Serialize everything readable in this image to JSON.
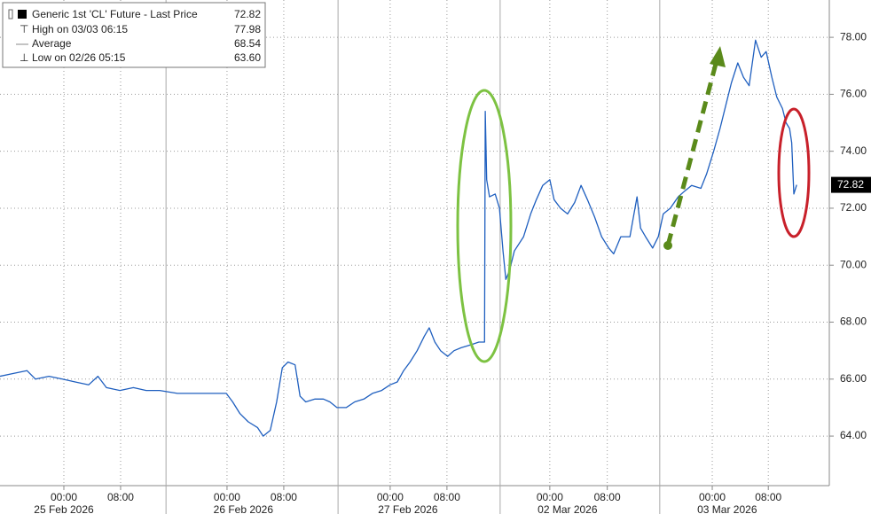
{
  "chart_data": {
    "type": "line",
    "series": [
      {
        "name": "Generic 1st 'CL' Future - Last Price",
        "color": "#1f5fbf",
        "x": [
          0,
          1.9,
          3.8,
          5,
          6.9,
          8.8,
          10.6,
          12.5,
          13.8,
          15,
          16.9,
          18.8,
          20.6,
          22.5,
          25,
          27.5,
          30,
          31.9,
          32.8,
          33.8,
          35,
          36.3,
          37.1,
          38.1,
          39,
          39.8,
          40.6,
          41.6,
          42.3,
          43.1,
          44.4,
          45.6,
          46.5,
          47.5,
          48.8,
          50,
          51.3,
          52.5,
          53.8,
          55,
          56,
          56.9,
          57.8,
          58.8,
          59.8,
          60.5,
          61.3,
          62.1,
          63.1,
          64,
          65,
          66.3,
          67.5,
          68.3,
          68.4,
          68.6,
          69,
          69.8,
          70.4,
          70.9,
          71.3,
          71.8,
          72.5,
          73.8,
          74.8,
          75.6,
          76.5,
          77.5,
          78.1,
          79,
          80,
          81,
          81.9,
          82.8,
          83.8,
          84.8,
          85.8,
          86.5,
          87.5,
          88.8,
          89.8,
          90.3,
          91,
          92,
          92.8,
          93.5,
          94.5,
          95.6,
          96.5,
          97.5,
          98.8,
          99.6,
          100.6,
          101.5,
          102.3,
          103.1,
          104,
          104.8,
          105.6,
          106.5,
          107.3,
          108,
          108.8,
          109.5,
          110.3,
          110.8,
          111.3,
          111.6,
          111.9,
          112.3
        ],
        "values": [
          66.1,
          66.2,
          66.3,
          66.0,
          66.1,
          66.0,
          65.9,
          65.8,
          66.1,
          65.7,
          65.6,
          65.7,
          65.6,
          65.6,
          65.5,
          65.5,
          65.5,
          65.5,
          65.2,
          64.8,
          64.5,
          64.3,
          64.0,
          64.2,
          65.2,
          66.4,
          66.6,
          66.5,
          65.4,
          65.2,
          65.3,
          65.3,
          65.2,
          65.0,
          65.0,
          65.2,
          65.3,
          65.5,
          65.6,
          65.8,
          65.9,
          66.3,
          66.6,
          67.0,
          67.5,
          67.8,
          67.3,
          67.0,
          66.8,
          67.0,
          67.1,
          67.2,
          67.3,
          67.3,
          75.4,
          73.0,
          72.4,
          72.5,
          72.0,
          70.5,
          69.5,
          69.8,
          70.5,
          71.0,
          71.8,
          72.3,
          72.8,
          73.0,
          72.3,
          72.0,
          71.8,
          72.2,
          72.8,
          72.3,
          71.7,
          71.0,
          70.6,
          70.4,
          71.0,
          71.0,
          72.4,
          71.3,
          71.0,
          70.6,
          71.0,
          71.8,
          72.0,
          72.4,
          72.6,
          72.8,
          72.7,
          73.2,
          74.0,
          74.8,
          75.6,
          76.4,
          77.1,
          76.6,
          76.3,
          77.9,
          77.3,
          77.5,
          76.6,
          75.9,
          75.5,
          75.0,
          74.8,
          74.3,
          72.5,
          72.82
        ]
      }
    ],
    "last_value": 72.82,
    "stats": [
      {
        "label": "High on 03/03 06:15",
        "value": 77.98
      },
      {
        "label": "Average",
        "value": 68.54
      },
      {
        "label": "Low on 02/26 05:15",
        "value": 63.6,
        "value_label": "63.60"
      }
    ],
    "xlim": [
      0,
      116.9
    ],
    "xticks": [
      {
        "value": 9,
        "label": "00:00"
      },
      {
        "value": 17,
        "label": "08:00"
      },
      {
        "value": 32,
        "label": "00:00"
      },
      {
        "value": 40,
        "label": "08:00"
      },
      {
        "value": 55,
        "label": "00:00"
      },
      {
        "value": 63,
        "label": "08:00"
      },
      {
        "value": 77.5,
        "label": "00:00"
      },
      {
        "value": 85.6,
        "label": "08:00"
      },
      {
        "value": 100.4,
        "label": "00:00"
      },
      {
        "value": 108.3,
        "label": "08:00"
      }
    ],
    "days": [
      {
        "value": 9,
        "label": "25 Feb 2026"
      },
      {
        "value": 34.3,
        "label": "26 Feb 2026"
      },
      {
        "value": 57.5,
        "label": "27 Feb 2026"
      },
      {
        "value": 80,
        "label": "02 Mar 2026"
      },
      {
        "value": 102.5,
        "label": "03 Mar 2026"
      }
    ],
    "ylim": [
      62.26,
      79.31
    ],
    "yticks": [
      {
        "value": 64,
        "label": "64.00"
      },
      {
        "value": 66,
        "label": "66.00"
      },
      {
        "value": 68,
        "label": "68.00"
      },
      {
        "value": 70,
        "label": "70.00"
      },
      {
        "value": 72,
        "label": "72.00"
      },
      {
        "value": 74,
        "label": "74.00"
      },
      {
        "value": 76,
        "label": "76.00"
      },
      {
        "value": 78,
        "label": "78.00"
      }
    ],
    "grid": true
  }
}
